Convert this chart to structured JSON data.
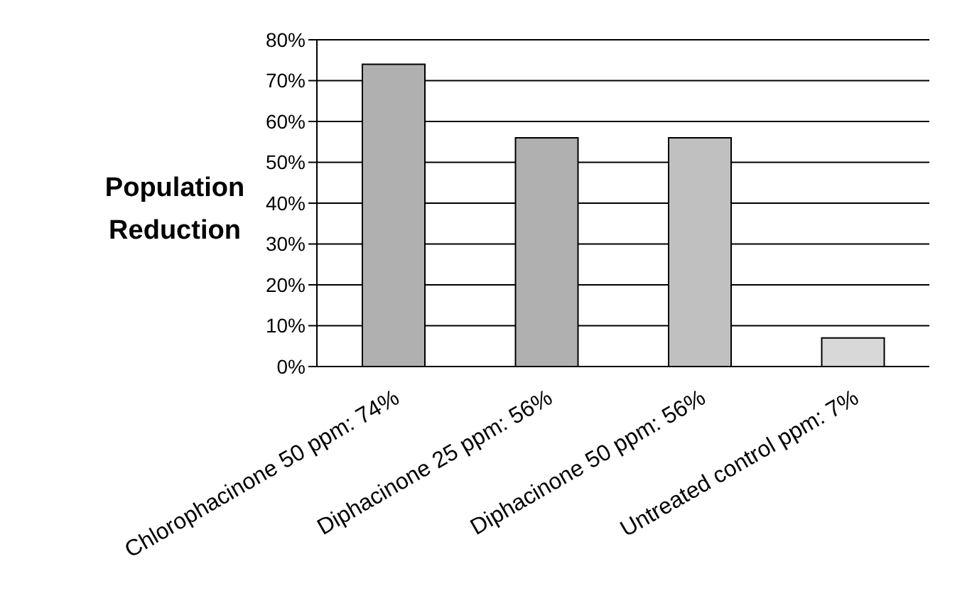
{
  "chart_data": {
    "type": "bar",
    "ylabel": "Population Reduction",
    "categories": [
      "Chlorophacinone 50 ppm: 74%",
      "Diphacinone 25 ppm: 56%",
      "Diphacinone 50 ppm: 56%",
      "Untreated control ppm: 7%"
    ],
    "values": [
      74,
      56,
      56,
      7
    ],
    "colors": [
      "#b0b0b0",
      "#b0b0b0",
      "#c0c0c0",
      "#d8d8d8"
    ],
    "ylim": [
      0,
      80
    ],
    "yticks": [
      {
        "value": 0,
        "label": "0%"
      },
      {
        "value": 10,
        "label": "10%"
      },
      {
        "value": 20,
        "label": "20%"
      },
      {
        "value": 30,
        "label": "30%"
      },
      {
        "value": 40,
        "label": "40%"
      },
      {
        "value": 50,
        "label": "50%"
      },
      {
        "value": 60,
        "label": "60%"
      },
      {
        "value": 70,
        "label": "70%"
      },
      {
        "value": 80,
        "label": "80%"
      }
    ],
    "grid": "y"
  }
}
